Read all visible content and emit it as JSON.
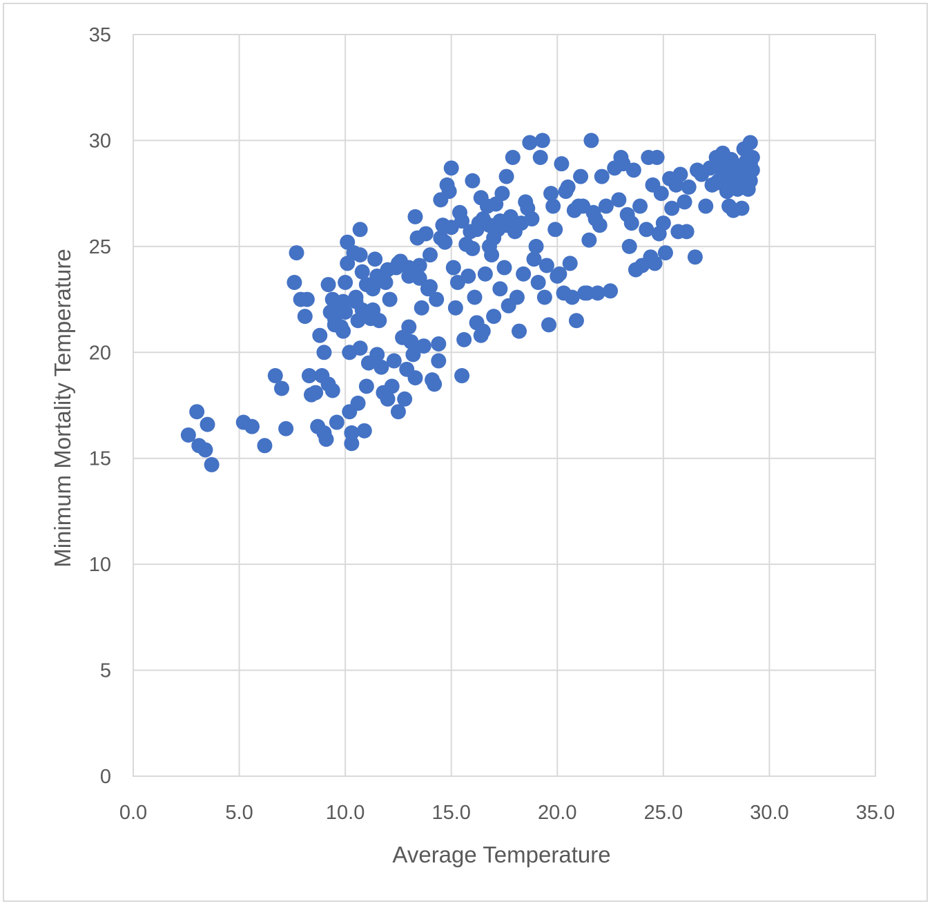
{
  "chart_data": {
    "type": "scatter",
    "title": "",
    "xlabel": "Average Temperature",
    "ylabel": "Minimum Mortality Temperature",
    "xlim": [
      0,
      35
    ],
    "ylim": [
      0,
      35
    ],
    "x_ticks": [
      "0.0",
      "5.0",
      "10.0",
      "15.0",
      "20.0",
      "25.0",
      "30.0",
      "35.0"
    ],
    "y_ticks": [
      "0",
      "5",
      "10",
      "15",
      "20",
      "25",
      "30",
      "35"
    ],
    "grid": true,
    "legend": "none",
    "marker_color": "#4472c4",
    "points": [
      [
        2.6,
        16.1
      ],
      [
        3.0,
        17.2
      ],
      [
        3.1,
        15.6
      ],
      [
        3.4,
        15.4
      ],
      [
        3.5,
        16.6
      ],
      [
        3.7,
        14.7
      ],
      [
        5.2,
        16.7
      ],
      [
        5.6,
        16.5
      ],
      [
        6.2,
        15.6
      ],
      [
        6.7,
        18.9
      ],
      [
        7.0,
        18.3
      ],
      [
        7.2,
        16.4
      ],
      [
        7.6,
        23.3
      ],
      [
        7.7,
        24.7
      ],
      [
        7.9,
        22.5
      ],
      [
        8.1,
        21.7
      ],
      [
        8.2,
        22.5
      ],
      [
        8.3,
        18.9
      ],
      [
        8.4,
        18.0
      ],
      [
        8.6,
        18.1
      ],
      [
        8.7,
        16.5
      ],
      [
        8.8,
        20.8
      ],
      [
        8.9,
        18.9
      ],
      [
        9.0,
        16.2
      ],
      [
        9.0,
        20.0
      ],
      [
        9.1,
        15.9
      ],
      [
        9.2,
        18.5
      ],
      [
        9.2,
        23.2
      ],
      [
        9.3,
        21.9
      ],
      [
        9.4,
        22.5
      ],
      [
        9.4,
        18.2
      ],
      [
        9.5,
        21.3
      ],
      [
        9.6,
        16.7
      ],
      [
        9.7,
        22.0
      ],
      [
        9.7,
        22.3
      ],
      [
        9.8,
        21.2
      ],
      [
        9.9,
        22.4
      ],
      [
        9.9,
        21.0
      ],
      [
        10.0,
        23.3
      ],
      [
        10.1,
        25.2
      ],
      [
        10.1,
        24.2
      ],
      [
        10.2,
        20.0
      ],
      [
        10.2,
        17.2
      ],
      [
        10.3,
        16.2
      ],
      [
        10.3,
        15.7
      ],
      [
        10.4,
        24.7
      ],
      [
        10.5,
        22.4
      ],
      [
        10.6,
        21.5
      ],
      [
        10.6,
        17.6
      ],
      [
        10.7,
        25.8
      ],
      [
        10.7,
        20.2
      ],
      [
        10.7,
        24.6
      ],
      [
        10.8,
        23.8
      ],
      [
        10.9,
        21.9
      ],
      [
        10.9,
        16.3
      ],
      [
        11.0,
        18.4
      ],
      [
        11.1,
        19.5
      ],
      [
        11.2,
        21.6
      ],
      [
        11.3,
        22.0
      ],
      [
        11.3,
        23.0
      ],
      [
        11.4,
        24.4
      ],
      [
        11.5,
        19.9
      ],
      [
        11.6,
        21.5
      ],
      [
        11.7,
        19.3
      ],
      [
        11.8,
        18.1
      ],
      [
        11.9,
        23.3
      ],
      [
        12.0,
        17.8
      ],
      [
        12.1,
        22.5
      ],
      [
        12.2,
        18.4
      ],
      [
        12.3,
        19.6
      ],
      [
        12.4,
        24.0
      ],
      [
        12.5,
        17.2
      ],
      [
        12.6,
        24.3
      ],
      [
        12.7,
        20.7
      ],
      [
        12.8,
        17.8
      ],
      [
        12.9,
        19.2
      ],
      [
        13.0,
        23.6
      ],
      [
        13.0,
        21.2
      ],
      [
        13.1,
        20.5
      ],
      [
        13.2,
        19.9
      ],
      [
        13.3,
        18.8
      ],
      [
        13.3,
        26.4
      ],
      [
        13.4,
        25.4
      ],
      [
        13.5,
        24.1
      ],
      [
        13.6,
        22.1
      ],
      [
        13.7,
        20.3
      ],
      [
        13.8,
        25.6
      ],
      [
        13.9,
        23.0
      ],
      [
        14.0,
        24.6
      ],
      [
        14.1,
        18.7
      ],
      [
        14.2,
        18.5
      ],
      [
        14.3,
        22.5
      ],
      [
        14.4,
        19.6
      ],
      [
        14.4,
        20.4
      ],
      [
        14.5,
        27.2
      ],
      [
        14.6,
        26.0
      ],
      [
        14.7,
        25.2
      ],
      [
        14.8,
        27.9
      ],
      [
        14.9,
        27.6
      ],
      [
        15.0,
        28.7
      ],
      [
        15.1,
        24.0
      ],
      [
        15.2,
        22.1
      ],
      [
        15.3,
        23.3
      ],
      [
        15.4,
        26.6
      ],
      [
        15.5,
        18.9
      ],
      [
        15.6,
        20.6
      ],
      [
        15.7,
        25.1
      ],
      [
        15.8,
        23.6
      ],
      [
        16.0,
        28.1
      ],
      [
        16.1,
        22.6
      ],
      [
        16.2,
        21.4
      ],
      [
        16.3,
        26.1
      ],
      [
        16.4,
        20.8
      ],
      [
        16.5,
        21.0
      ],
      [
        16.6,
        23.7
      ],
      [
        16.7,
        26.9
      ],
      [
        16.8,
        25.0
      ],
      [
        16.9,
        24.6
      ],
      [
        17.0,
        21.7
      ],
      [
        17.1,
        27.0
      ],
      [
        17.2,
        25.8
      ],
      [
        17.3,
        23.0
      ],
      [
        17.4,
        27.5
      ],
      [
        17.5,
        24.0
      ],
      [
        17.6,
        28.3
      ],
      [
        17.7,
        22.2
      ],
      [
        17.8,
        26.4
      ],
      [
        17.9,
        29.2
      ],
      [
        18.0,
        25.7
      ],
      [
        18.1,
        22.6
      ],
      [
        18.2,
        21.0
      ],
      [
        18.3,
        26.1
      ],
      [
        18.4,
        23.7
      ],
      [
        18.5,
        27.1
      ],
      [
        18.6,
        26.8
      ],
      [
        18.7,
        29.9
      ],
      [
        18.8,
        26.3
      ],
      [
        18.9,
        24.4
      ],
      [
        19.0,
        25.0
      ],
      [
        19.1,
        23.3
      ],
      [
        19.2,
        29.2
      ],
      [
        19.3,
        30.0
      ],
      [
        19.4,
        22.6
      ],
      [
        19.5,
        24.1
      ],
      [
        19.6,
        21.3
      ],
      [
        19.7,
        27.5
      ],
      [
        19.8,
        26.9
      ],
      [
        19.9,
        25.8
      ],
      [
        20.0,
        23.6
      ],
      [
        20.1,
        23.7
      ],
      [
        20.2,
        28.9
      ],
      [
        20.3,
        22.8
      ],
      [
        20.4,
        27.6
      ],
      [
        20.5,
        27.8
      ],
      [
        20.6,
        24.2
      ],
      [
        20.7,
        22.6
      ],
      [
        20.8,
        26.7
      ],
      [
        20.9,
        21.5
      ],
      [
        21.0,
        26.9
      ],
      [
        21.1,
        28.3
      ],
      [
        21.2,
        26.9
      ],
      [
        21.3,
        22.8
      ],
      [
        21.4,
        22.8
      ],
      [
        21.5,
        25.3
      ],
      [
        21.6,
        30.0
      ],
      [
        21.7,
        26.6
      ],
      [
        21.8,
        26.3
      ],
      [
        21.9,
        22.8
      ],
      [
        22.0,
        26.0
      ],
      [
        22.1,
        28.3
      ],
      [
        22.3,
        26.9
      ],
      [
        22.5,
        22.9
      ],
      [
        22.7,
        28.7
      ],
      [
        22.9,
        27.2
      ],
      [
        23.0,
        29.2
      ],
      [
        23.1,
        28.9
      ],
      [
        23.3,
        26.5
      ],
      [
        23.4,
        25.0
      ],
      [
        23.5,
        26.1
      ],
      [
        23.6,
        28.6
      ],
      [
        23.7,
        23.9
      ],
      [
        23.9,
        26.9
      ],
      [
        24.0,
        24.1
      ],
      [
        24.2,
        25.8
      ],
      [
        24.3,
        29.2
      ],
      [
        24.4,
        24.5
      ],
      [
        24.5,
        27.9
      ],
      [
        24.6,
        24.2
      ],
      [
        24.7,
        29.2
      ],
      [
        24.8,
        25.6
      ],
      [
        24.9,
        27.5
      ],
      [
        25.0,
        26.1
      ],
      [
        25.1,
        24.7
      ],
      [
        25.3,
        28.2
      ],
      [
        25.4,
        26.8
      ],
      [
        25.6,
        27.9
      ],
      [
        25.7,
        25.7
      ],
      [
        25.8,
        28.4
      ],
      [
        26.0,
        27.1
      ],
      [
        26.1,
        25.7
      ],
      [
        26.2,
        27.8
      ],
      [
        26.5,
        24.5
      ],
      [
        26.6,
        28.6
      ],
      [
        26.8,
        28.4
      ],
      [
        27.0,
        26.9
      ],
      [
        27.2,
        28.7
      ],
      [
        27.3,
        27.9
      ],
      [
        27.5,
        29.2
      ],
      [
        27.6,
        28.1
      ],
      [
        27.7,
        28.9
      ],
      [
        27.8,
        29.4
      ],
      [
        27.9,
        27.9
      ],
      [
        28.0,
        28.5
      ],
      [
        28.1,
        26.9
      ],
      [
        28.2,
        29.1
      ],
      [
        28.3,
        26.7
      ],
      [
        28.4,
        28.2
      ],
      [
        28.5,
        28.8
      ],
      [
        28.6,
        27.8
      ],
      [
        28.7,
        26.8
      ],
      [
        28.8,
        29.6
      ],
      [
        28.9,
        28.3
      ],
      [
        29.0,
        28.7
      ],
      [
        29.0,
        27.7
      ],
      [
        29.1,
        29.9
      ],
      [
        29.1,
        28.1
      ],
      [
        29.2,
        29.2
      ],
      [
        29.2,
        28.6
      ],
      [
        27.5,
        28.0
      ],
      [
        27.8,
        28.4
      ],
      [
        28.0,
        27.6
      ],
      [
        28.2,
        28.9
      ],
      [
        28.5,
        27.7
      ],
      [
        28.7,
        28.4
      ],
      [
        28.9,
        29.0
      ],
      [
        29.1,
        28.9
      ],
      [
        16.2,
        25.8
      ],
      [
        16.5,
        26.3
      ],
      [
        16.8,
        26.0
      ],
      [
        17.0,
        25.4
      ],
      [
        17.3,
        26.2
      ],
      [
        16.0,
        24.9
      ],
      [
        15.9,
        25.7
      ],
      [
        17.6,
        26.0
      ],
      [
        11.0,
        23.2
      ],
      [
        11.5,
        23.6
      ],
      [
        12.0,
        23.9
      ],
      [
        12.5,
        24.2
      ],
      [
        13.0,
        24.0
      ],
      [
        13.5,
        23.5
      ],
      [
        14.0,
        23.1
      ],
      [
        10.5,
        22.6
      ],
      [
        9.5,
        21.6
      ],
      [
        10.0,
        21.9
      ],
      [
        10.8,
        22.0
      ],
      [
        11.3,
        21.8
      ],
      [
        14.5,
        25.4
      ],
      [
        15.0,
        25.9
      ],
      [
        15.5,
        26.2
      ],
      [
        16.4,
        27.3
      ]
    ]
  }
}
